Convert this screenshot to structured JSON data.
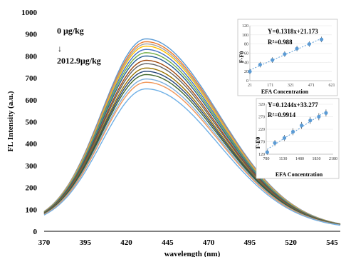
{
  "chart_data": [
    {
      "type": "line",
      "xlabel": "wavelength (nm)",
      "ylabel": "FL Intensity (a.u.)",
      "xlim": [
        370,
        550
      ],
      "ylim": [
        0,
        1000
      ],
      "x_ticks": [
        "370",
        "395",
        "420",
        "445",
        "470",
        "495",
        "520",
        "545"
      ],
      "y_ticks": [
        "0",
        "100",
        "200",
        "300",
        "400",
        "500",
        "600",
        "700",
        "800",
        "900",
        "1000"
      ],
      "grid": false,
      "legend": "none",
      "annotation_top": "0 μg/kg",
      "annotation_arrow": "↓",
      "annotation_bottom": "2012.9μg/kg",
      "peak_x": 432,
      "start_value": 30,
      "end_value": 10,
      "series": [
        {
          "peak": 878,
          "color": "#5b9bd5"
        },
        {
          "peak": 865,
          "color": "#ed7d31"
        },
        {
          "peak": 855,
          "color": "#a5a5a5"
        },
        {
          "peak": 845,
          "color": "#ffc000"
        },
        {
          "peak": 830,
          "color": "#4472c4"
        },
        {
          "peak": 815,
          "color": "#70ad47"
        },
        {
          "peak": 800,
          "color": "#255e91"
        },
        {
          "peak": 780,
          "color": "#9e480e"
        },
        {
          "peak": 765,
          "color": "#636363"
        },
        {
          "peak": 745,
          "color": "#997300"
        },
        {
          "peak": 730,
          "color": "#264478"
        },
        {
          "peak": 715,
          "color": "#43682b"
        },
        {
          "peak": 695,
          "color": "#7cafdd"
        },
        {
          "peak": 680,
          "color": "#f1975a"
        },
        {
          "peak": 650,
          "color": "#6fb0e6"
        }
      ]
    },
    {
      "type": "scatter",
      "equation": "Y=0.1318x+21.173",
      "r2": "R²=0.988",
      "xlabel": "EFA Concentration",
      "ylabel": "F-F0",
      "xlim": [
        21,
        621
      ],
      "ylim": [
        0,
        120
      ],
      "x_ticks": [
        "21",
        "171",
        "321",
        "471",
        "621"
      ],
      "y_ticks": [
        "0",
        "20",
        "40",
        "60",
        "80",
        "100",
        "120"
      ],
      "color": "#5b9bd5",
      "x": [
        21,
        96,
        186,
        276,
        366,
        456,
        546
      ],
      "y": [
        20,
        35,
        45,
        58,
        70,
        80,
        90
      ],
      "err": [
        6,
        6,
        6,
        6,
        6,
        6,
        6
      ]
    },
    {
      "type": "scatter",
      "equation": "Y=0.1244x+33.277",
      "r2": "R²=0.9914",
      "xlabel": "EFA Concentration",
      "ylabel": "F-F0",
      "xlim": [
        780,
        2180
      ],
      "ylim": [
        120,
        320
      ],
      "x_ticks": [
        "780",
        "1130",
        "1480",
        "1830",
        "2180"
      ],
      "y_ticks": [
        "120",
        "170",
        "220",
        "270",
        "320"
      ],
      "color": "#5b9bd5",
      "x": [
        800,
        960,
        1160,
        1340,
        1520,
        1700,
        1880,
        2030
      ],
      "y": [
        128,
        165,
        185,
        210,
        235,
        255,
        270,
        285
      ],
      "err": [
        10,
        12,
        12,
        14,
        14,
        14,
        14,
        14
      ]
    }
  ]
}
